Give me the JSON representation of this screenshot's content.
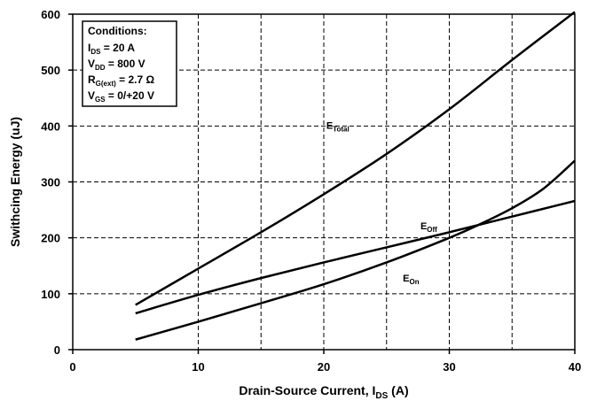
{
  "chart_data": {
    "type": "line",
    "xlabel": {
      "main": "Drain-Source Current, I",
      "sub": "DS",
      "suffix": " (A)"
    },
    "ylabel": "Swithcing Energy (uJ)",
    "xlim": [
      0,
      40
    ],
    "ylim": [
      0,
      600
    ],
    "xticks": [
      0,
      10,
      20,
      30,
      40
    ],
    "yticks": [
      0,
      100,
      200,
      300,
      400,
      500,
      600
    ],
    "x_dashed_grid": [
      15,
      25,
      35
    ],
    "grid": true,
    "conditions": {
      "title": "Conditions:",
      "lines": [
        {
          "main": "I",
          "sub": "DS",
          "rest": " = 20 A"
        },
        {
          "main": "V",
          "sub": "DD",
          "rest": " = 800 V"
        },
        {
          "main": "R",
          "sub": "G(ext)",
          "rest": " = 2.7 Ω"
        },
        {
          "main": "V",
          "sub": "GS",
          "rest": " =  0/+20 V"
        }
      ]
    },
    "series": [
      {
        "name": "E_Total",
        "label_main": "E",
        "label_sub": "Total",
        "x": [
          5,
          10,
          15,
          20,
          25,
          30,
          35,
          40
        ],
        "y": [
          80,
          145,
          210,
          278,
          350,
          430,
          518,
          604
        ]
      },
      {
        "name": "E_Off",
        "label_main": "E",
        "label_sub": "Off",
        "x": [
          5,
          10,
          15,
          20,
          25,
          30,
          35,
          40
        ],
        "y": [
          65,
          98,
          128,
          156,
          183,
          210,
          238,
          266
        ]
      },
      {
        "name": "E_On",
        "label_main": "E",
        "label_sub": "On",
        "x": [
          5,
          10,
          15,
          20,
          25,
          30,
          32.5,
          35,
          37.5,
          40
        ],
        "y": [
          18,
          50,
          83,
          117,
          156,
          200,
          225,
          253,
          288,
          338
        ]
      }
    ]
  }
}
